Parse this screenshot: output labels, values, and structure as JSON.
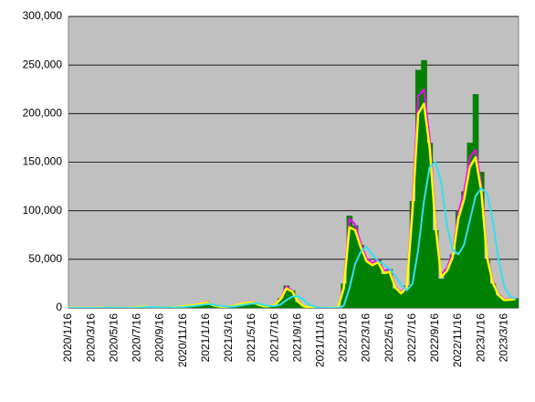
{
  "chart_data": {
    "type": "bar",
    "categories": [
      "2020/1/16",
      null,
      null,
      null,
      "2020/3/16",
      null,
      null,
      null,
      "2020/5/16",
      null,
      null,
      null,
      "2020/7/16",
      null,
      null,
      null,
      "2020/9/16",
      null,
      null,
      null,
      "2020/11/16",
      null,
      null,
      null,
      "2021/1/16",
      null,
      null,
      null,
      "2021/3/16",
      null,
      null,
      null,
      "2021/5/16",
      null,
      null,
      null,
      "2021/7/16",
      null,
      null,
      null,
      "2021/9/16",
      null,
      null,
      null,
      "2021/11/16",
      null,
      null,
      null,
      "2022/1/16",
      null,
      null,
      null,
      "2022/3/16",
      null,
      null,
      null,
      "2022/5/16",
      null,
      null,
      null,
      "2022/7/16",
      null,
      null,
      null,
      "2022/9/16",
      null,
      null,
      null,
      "2022/11/16",
      null,
      null,
      null,
      "2023/1/16",
      null,
      null,
      null,
      "2023/3/16",
      null,
      null
    ],
    "series": [
      {
        "type": "bar",
        "color": "#008000",
        "values": [
          0,
          0,
          10,
          30,
          50,
          200,
          550,
          200,
          50,
          40,
          60,
          150,
          600,
          1400,
          1100,
          600,
          500,
          500,
          600,
          900,
          2000,
          2400,
          3000,
          4500,
          6500,
          3000,
          1500,
          1100,
          1500,
          2500,
          4500,
          5500,
          6500,
          3500,
          1800,
          1800,
          3500,
          10000,
          23000,
          18000,
          6000,
          1500,
          500,
          250,
          150,
          150,
          200,
          500,
          25000,
          95000,
          85000,
          65000,
          50000,
          45000,
          50000,
          35000,
          40000,
          20000,
          15000,
          23000,
          110000,
          245000,
          255000,
          170000,
          80000,
          30000,
          40000,
          55000,
          100000,
          120000,
          170000,
          220000,
          140000,
          50000,
          25000,
          13000,
          8000,
          9000,
          10000
        ]
      },
      {
        "type": "line",
        "color": "#ff00ff",
        "width": 2,
        "values": [
          0,
          0,
          8,
          25,
          45,
          220,
          520,
          280,
          70,
          45,
          65,
          160,
          620,
          1400,
          1150,
          700,
          550,
          550,
          650,
          950,
          2000,
          2500,
          3100,
          4600,
          6400,
          3400,
          1700,
          1200,
          1500,
          2600,
          4600,
          5600,
          6500,
          3800,
          1900,
          1800,
          3500,
          9800,
          22000,
          18000,
          7000,
          1800,
          600,
          270,
          160,
          160,
          200,
          450,
          23000,
          92000,
          86000,
          66000,
          51000,
          46000,
          50000,
          38000,
          40000,
          22000,
          16000,
          23000,
          110000,
          218000,
          225000,
          175000,
          90000,
          34000,
          41000,
          56000,
          98000,
          120000,
          155000,
          163000,
          128000,
          55000,
          28000,
          14000,
          8600,
          9000,
          9500
        ]
      },
      {
        "type": "line",
        "color": "#ffff00",
        "width": 2.5,
        "values": [
          0,
          0,
          5,
          20,
          40,
          180,
          450,
          250,
          60,
          40,
          60,
          140,
          550,
          1250,
          1050,
          650,
          500,
          500,
          600,
          850,
          1800,
          2300,
          2900,
          4200,
          5800,
          3200,
          1600,
          1100,
          1400,
          2400,
          4200,
          5200,
          6000,
          3600,
          1800,
          1700,
          3200,
          9000,
          20000,
          17000,
          6500,
          1700,
          550,
          250,
          150,
          150,
          180,
          400,
          20000,
          83000,
          80000,
          62000,
          48000,
          44000,
          47000,
          36000,
          37000,
          21000,
          15000,
          21000,
          100000,
          200000,
          210000,
          165000,
          85000,
          32000,
          38000,
          52000,
          92000,
          112000,
          145000,
          155000,
          120000,
          52000,
          26000,
          13000,
          8000,
          8500,
          9000
        ]
      },
      {
        "type": "line",
        "color": "#33e0f0",
        "width": 2,
        "values": [
          0,
          0,
          0,
          5,
          20,
          60,
          200,
          300,
          200,
          80,
          50,
          60,
          200,
          600,
          900,
          800,
          600,
          500,
          500,
          600,
          900,
          1400,
          2000,
          2800,
          3800,
          3800,
          2600,
          1600,
          1200,
          1500,
          2500,
          3600,
          4500,
          4500,
          3200,
          2000,
          2000,
          3500,
          8000,
          11500,
          12000,
          8500,
          3500,
          1000,
          300,
          150,
          150,
          200,
          2000,
          20000,
          45000,
          58000,
          63000,
          55000,
          48000,
          45000,
          40000,
          33000,
          24000,
          18000,
          25000,
          60000,
          110000,
          145000,
          150000,
          130000,
          85000,
          60000,
          55000,
          65000,
          90000,
          115000,
          123000,
          118000,
          90000,
          50000,
          22000,
          12000,
          9000
        ]
      }
    ],
    "ylim": [
      0,
      300000
    ],
    "yticks": [
      0,
      {
        "value": 50000,
        "label": "50,000"
      },
      {
        "value": 100000,
        "label": "100,000"
      },
      {
        "value": 150000,
        "label": "150,000"
      },
      {
        "value": 200000,
        "label": "200,000"
      },
      {
        "value": 250000,
        "label": "250,000"
      },
      {
        "value": 300000,
        "label": "300,000"
      }
    ],
    "grid": true
  }
}
